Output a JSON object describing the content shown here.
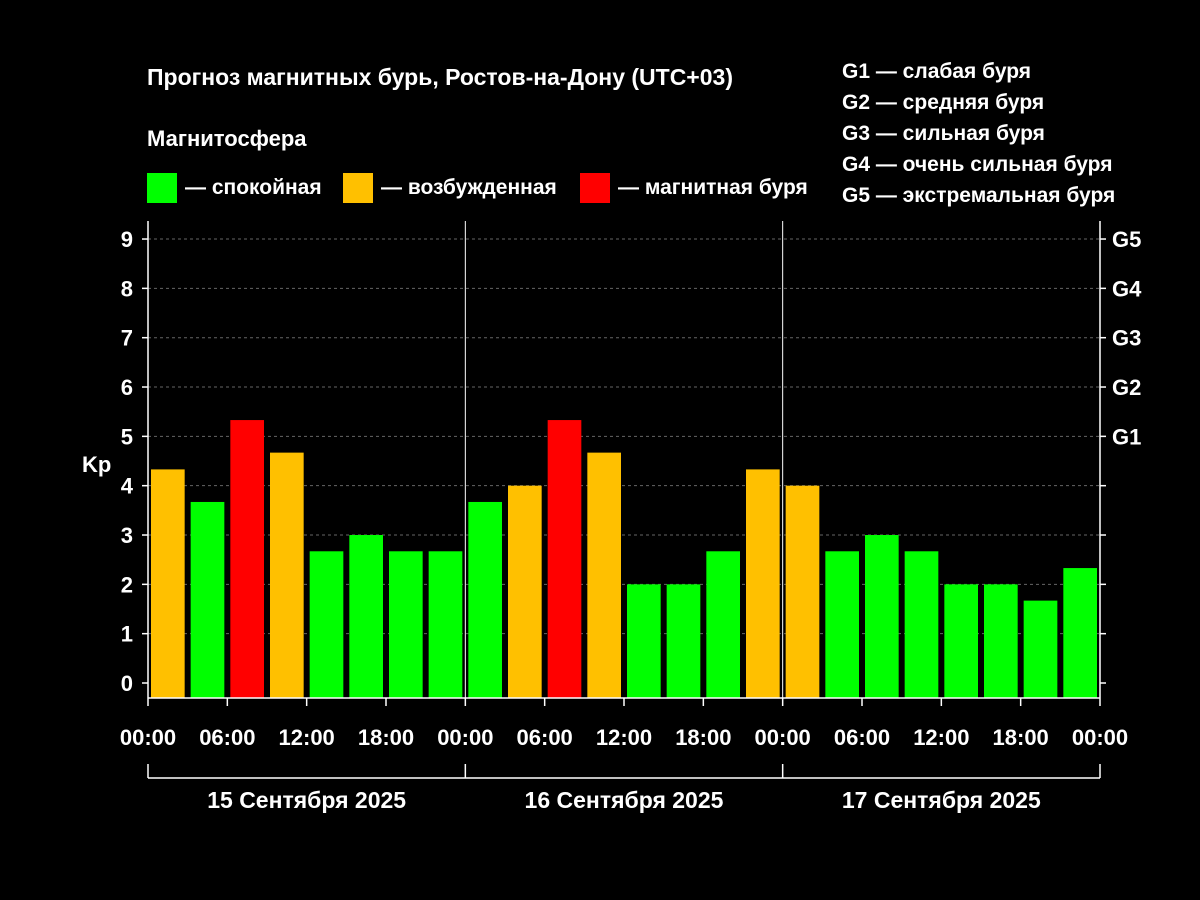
{
  "header": {
    "title": "Прогноз магнитных бурь, Ростов-на-Дону (UTC+03)",
    "subtitle": "Магнитосфера"
  },
  "legend": [
    {
      "label": "— спокойная",
      "color": "#00ff00"
    },
    {
      "label": "— возбужденная",
      "color": "#ffc000"
    },
    {
      "label": "— магнитная буря",
      "color": "#ff0000"
    }
  ],
  "g_levels": [
    "G1 — слабая буря",
    "G2 — средняя буря",
    "G3 — сильная буря",
    "G4 — очень сильная буря",
    "G5 — экстремальная буря"
  ],
  "chart_data": {
    "type": "bar",
    "ylabel": "Kp",
    "ylim": [
      0,
      9
    ],
    "yticks": [
      0,
      1,
      2,
      3,
      4,
      5,
      6,
      7,
      8,
      9
    ],
    "right_ticks": [
      {
        "value": 5,
        "label": "G1"
      },
      {
        "value": 6,
        "label": "G2"
      },
      {
        "value": 7,
        "label": "G3"
      },
      {
        "value": 8,
        "label": "G4"
      },
      {
        "value": 9,
        "label": "G5"
      }
    ],
    "grid": true,
    "xtick_labels": [
      "00:00",
      "06:00",
      "12:00",
      "18:00",
      "00:00",
      "06:00",
      "12:00",
      "18:00",
      "00:00",
      "06:00",
      "12:00",
      "18:00",
      "00:00"
    ],
    "days": [
      "15 Сентября 2025",
      "16 Сентября 2025",
      "17 Сентября 2025"
    ],
    "interval_hours": 3,
    "colors": {
      "quiet": "#00ff00",
      "active": "#ffc000",
      "storm": "#ff0000"
    },
    "values": [
      4.33,
      3.67,
      5.33,
      4.67,
      2.67,
      3.0,
      2.67,
      2.67,
      3.67,
      4.0,
      5.33,
      4.67,
      2.0,
      2.0,
      2.67,
      4.33,
      4.0,
      2.67,
      3.0,
      2.67,
      2.0,
      2.0,
      1.67,
      2.33
    ]
  }
}
